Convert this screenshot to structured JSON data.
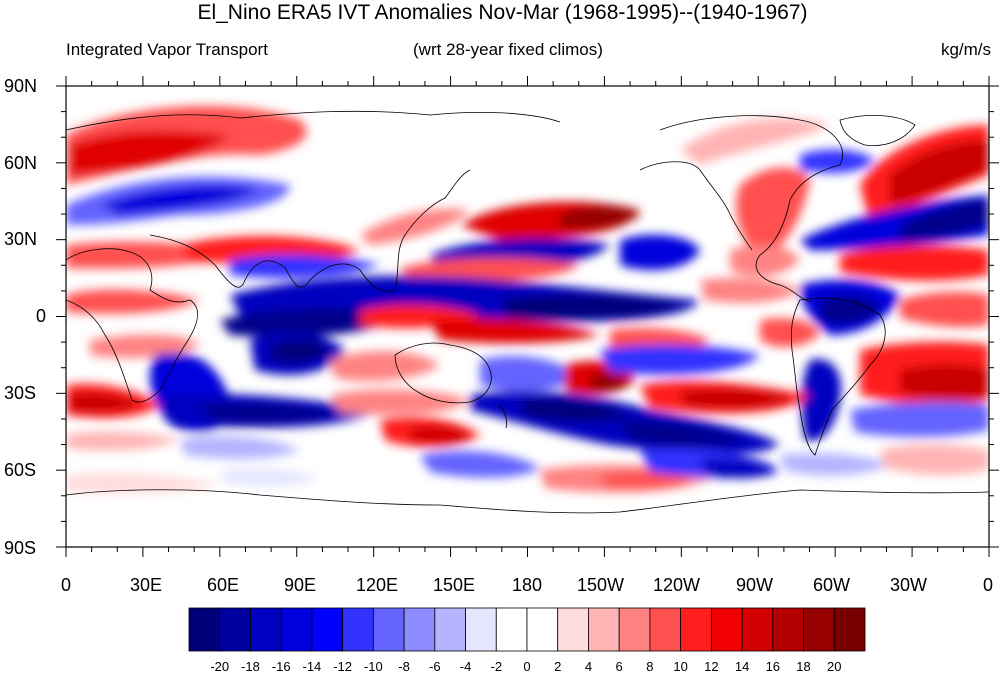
{
  "title": "El_Nino ERA5 IVT Anomalies Nov-Mar (1968-1995)--(1940-1967)",
  "subtitle_left": "Integrated Vapor Transport",
  "subtitle_center": "(wrt 28-year fixed climos)",
  "subtitle_right": "kg/m/s",
  "lat_labels": [
    "90N",
    "60N",
    "30N",
    "0",
    "30S",
    "60S",
    "90S"
  ],
  "lon_labels": [
    "0",
    "30E",
    "60E",
    "90E",
    "120E",
    "150E",
    "180",
    "150W",
    "120W",
    "90W",
    "60W",
    "30W",
    "0"
  ],
  "colorbar": {
    "colors": [
      "#00007a",
      "#0000a0",
      "#0000c0",
      "#0000dc",
      "#0000ff",
      "#3232ff",
      "#6464ff",
      "#8c8cff",
      "#b4b4ff",
      "#e6e6ff",
      "#ffffff",
      "#ffffff",
      "#ffdcdc",
      "#ffb4b4",
      "#ff8282",
      "#ff5050",
      "#ff1e1e",
      "#f00000",
      "#d20000",
      "#b40000",
      "#960000",
      "#780000"
    ],
    "labels": [
      "-20",
      "-18",
      "-16",
      "-14",
      "-12",
      "-10",
      "-8",
      "-6",
      "-4",
      "-2",
      "0",
      "2",
      "4",
      "6",
      "8",
      "10",
      "12",
      "14",
      "16",
      "18",
      "20"
    ]
  },
  "map_data": {
    "map_type": "global anomaly contour map",
    "lon_range": [
      0,
      360
    ],
    "lat_range": [
      -90,
      90
    ],
    "color_scale": "blue negative / red positive"
  }
}
